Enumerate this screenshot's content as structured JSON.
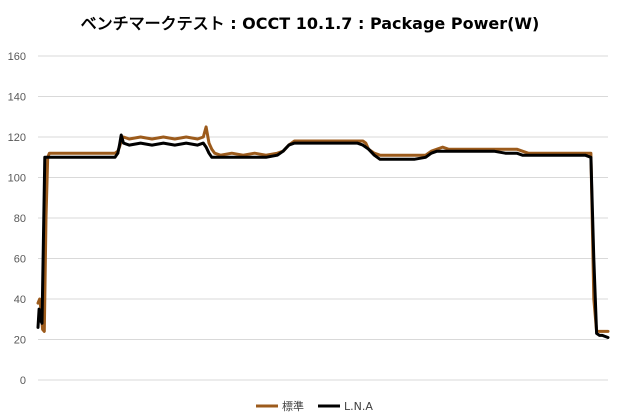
{
  "chart_data": {
    "type": "line",
    "title": "ベンチマークテスト : OCCT 10.1.7 : Package Power(W)",
    "xlabel": "",
    "ylabel": "",
    "ylim": [
      0,
      160
    ],
    "yticks": [
      0,
      20,
      40,
      60,
      80,
      100,
      120,
      140,
      160
    ],
    "x_range": [
      0,
      100
    ],
    "grid": "horizontal",
    "legend_position": "bottom",
    "series": [
      {
        "name": "標準",
        "color": "#9C5B1C",
        "x": [
          0,
          0.3,
          0.5,
          0.8,
          1.1,
          1.4,
          1.7,
          2.0,
          2.5,
          4,
          6,
          8,
          10,
          12,
          14,
          13.5,
          14,
          14.3,
          14.6,
          15,
          16,
          18,
          20,
          22,
          24,
          26,
          28,
          29,
          29.5,
          30,
          30.5,
          31,
          32,
          34,
          36,
          38,
          40,
          42,
          43,
          44,
          45,
          46,
          48,
          50,
          52,
          54,
          56,
          57,
          57.5,
          58,
          59,
          60,
          62,
          64,
          66,
          68,
          69,
          70,
          71,
          72,
          74,
          76,
          78,
          80,
          82,
          84,
          85,
          86,
          87,
          88,
          90,
          92,
          94,
          95,
          96,
          97,
          97.5,
          98,
          98.5,
          99,
          100
        ],
        "y": [
          38,
          40,
          35,
          25,
          24,
          80,
          110,
          112,
          112,
          112,
          112,
          112,
          112,
          112,
          112,
          112,
          113,
          115,
          118,
          120,
          119,
          120,
          119,
          120,
          119,
          120,
          119,
          120,
          125,
          117,
          114,
          112,
          111,
          112,
          111,
          112,
          111,
          112,
          113,
          116,
          118,
          118,
          118,
          118,
          118,
          118,
          118,
          118,
          117,
          114,
          112,
          111,
          111,
          111,
          111,
          111,
          113,
          114,
          115,
          114,
          114,
          114,
          114,
          114,
          114,
          114,
          113,
          112,
          112,
          112,
          112,
          112,
          112,
          112,
          112,
          112,
          40,
          24,
          24,
          24,
          24
        ]
      },
      {
        "name": "L.N.A",
        "color": "#000000",
        "x": [
          0,
          0.2,
          0.4,
          0.7,
          0.9,
          1.2,
          1.5,
          1.8,
          2.5,
          4,
          6,
          8,
          10,
          12,
          13.5,
          14,
          14.3,
          14.6,
          15,
          16,
          18,
          20,
          22,
          24,
          26,
          28,
          29,
          29.5,
          30,
          30.5,
          31,
          32,
          34,
          36,
          38,
          40,
          42,
          43,
          44,
          45,
          46,
          48,
          50,
          52,
          54,
          56,
          57,
          58,
          59,
          60,
          62,
          64,
          66,
          68,
          69,
          70,
          71,
          72,
          74,
          76,
          78,
          80,
          82,
          84,
          85,
          86,
          87,
          88,
          90,
          92,
          94,
          95,
          96,
          97,
          97.5,
          98,
          98.5,
          99,
          100
        ],
        "y": [
          26,
          35,
          30,
          28,
          60,
          110,
          110,
          110,
          110,
          110,
          110,
          110,
          110,
          110,
          110,
          112,
          116,
          121,
          117,
          116,
          117,
          116,
          117,
          116,
          117,
          116,
          117,
          115,
          112,
          110,
          110,
          110,
          110,
          110,
          110,
          110,
          111,
          113,
          116,
          117,
          117,
          117,
          117,
          117,
          117,
          117,
          116,
          114,
          111,
          109,
          109,
          109,
          109,
          110,
          112,
          113,
          113,
          113,
          113,
          113,
          113,
          113,
          112,
          112,
          111,
          111,
          111,
          111,
          111,
          111,
          111,
          111,
          111,
          110,
          60,
          23,
          22,
          22,
          21
        ]
      }
    ]
  }
}
